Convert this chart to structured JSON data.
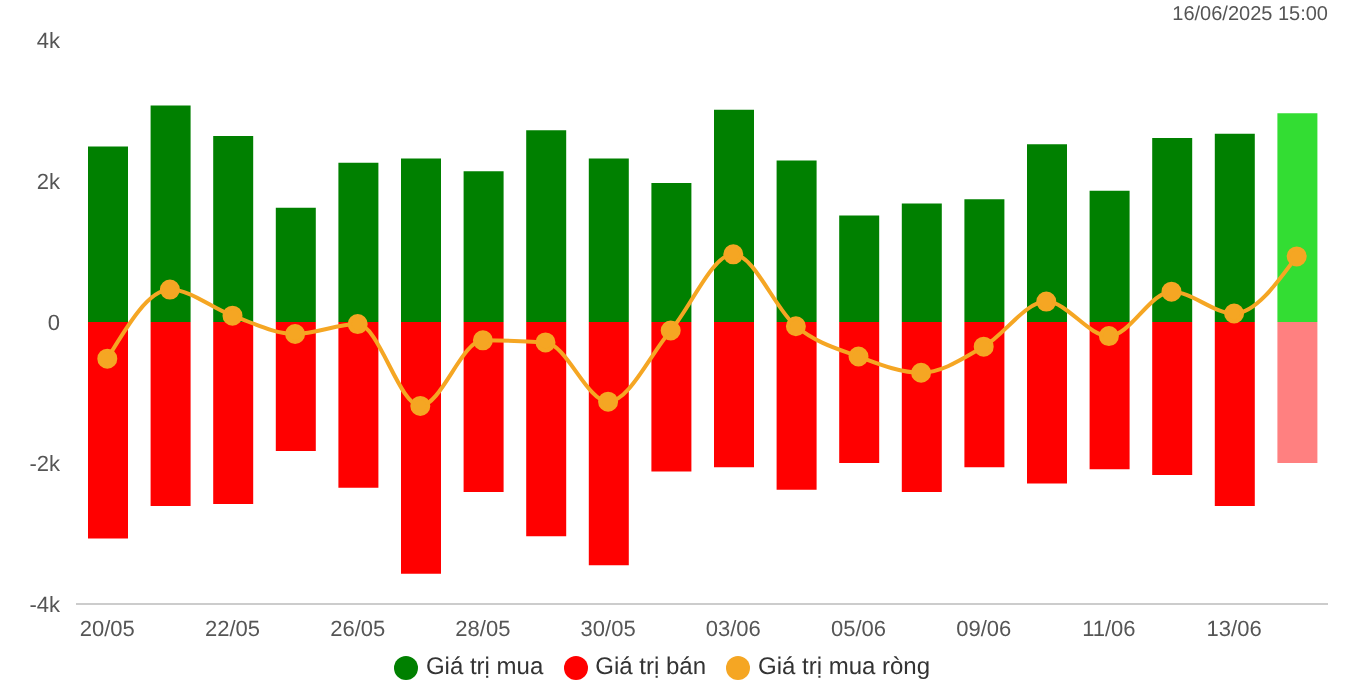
{
  "chart_data": {
    "type": "bar",
    "stacked": true,
    "categories": [
      "20/05",
      null,
      "22/05",
      null,
      "26/05",
      null,
      "28/05",
      null,
      "30/05",
      null,
      "03/06",
      null,
      "05/06",
      null,
      "09/06",
      null,
      "11/06",
      null,
      "13/06",
      null
    ],
    "series": [
      {
        "name": "Giá trị mua",
        "color": "#008000",
        "colors": [
          "#008000",
          "#008000",
          "#008000",
          "#008000",
          "#008000",
          "#008000",
          "#008000",
          "#008000",
          "#008000",
          "#008000",
          "#008000",
          "#008000",
          "#008000",
          "#008000",
          "#008000",
          "#008000",
          "#008000",
          "#008000",
          "#008000",
          "#33dd33"
        ],
        "values": [
          2490,
          3070,
          2640,
          1620,
          2260,
          2320,
          2140,
          2720,
          2320,
          1970,
          3010,
          2290,
          1510,
          1680,
          1740,
          2520,
          1860,
          2610,
          2670,
          2960
        ]
      },
      {
        "name": "Giá trị bán",
        "color": "#ff0000",
        "colors": [
          "#ff0000",
          "#ff0000",
          "#ff0000",
          "#ff0000",
          "#ff0000",
          "#ff0000",
          "#ff0000",
          "#ff0000",
          "#ff0000",
          "#ff0000",
          "#ff0000",
          "#ff0000",
          "#ff0000",
          "#ff0000",
          "#ff0000",
          "#ff0000",
          "#ff0000",
          "#ff0000",
          "#ff0000",
          "#ff8080"
        ],
        "values": [
          -3070,
          -2610,
          -2580,
          -1830,
          -2350,
          -3570,
          -2410,
          -3040,
          -3450,
          -2120,
          -2060,
          -2380,
          -2000,
          -2410,
          -2060,
          -2290,
          -2090,
          -2170,
          -2610,
          -2000
        ]
      },
      {
        "name": "Giá trị mua ròng",
        "type": "line",
        "color": "#f5a623",
        "values": [
          -520,
          460,
          90,
          -170,
          -30,
          -1190,
          -260,
          -290,
          -1130,
          -120,
          960,
          -60,
          -490,
          -720,
          -350,
          290,
          -200,
          430,
          120,
          930
        ]
      }
    ],
    "ylim": [
      -4000,
      4000
    ],
    "yticks": [
      {
        "value": -4000,
        "label": "-4k"
      },
      {
        "value": -2000,
        "label": "-2k"
      },
      {
        "value": 0,
        "label": "0"
      },
      {
        "value": 2000,
        "label": "2k"
      },
      {
        "value": 4000,
        "label": "4k"
      }
    ],
    "grid": false,
    "legend": "bottom",
    "marker": "circle",
    "line_style": "solid",
    "annotations": [
      "16/06/2025 15:00"
    ]
  }
}
